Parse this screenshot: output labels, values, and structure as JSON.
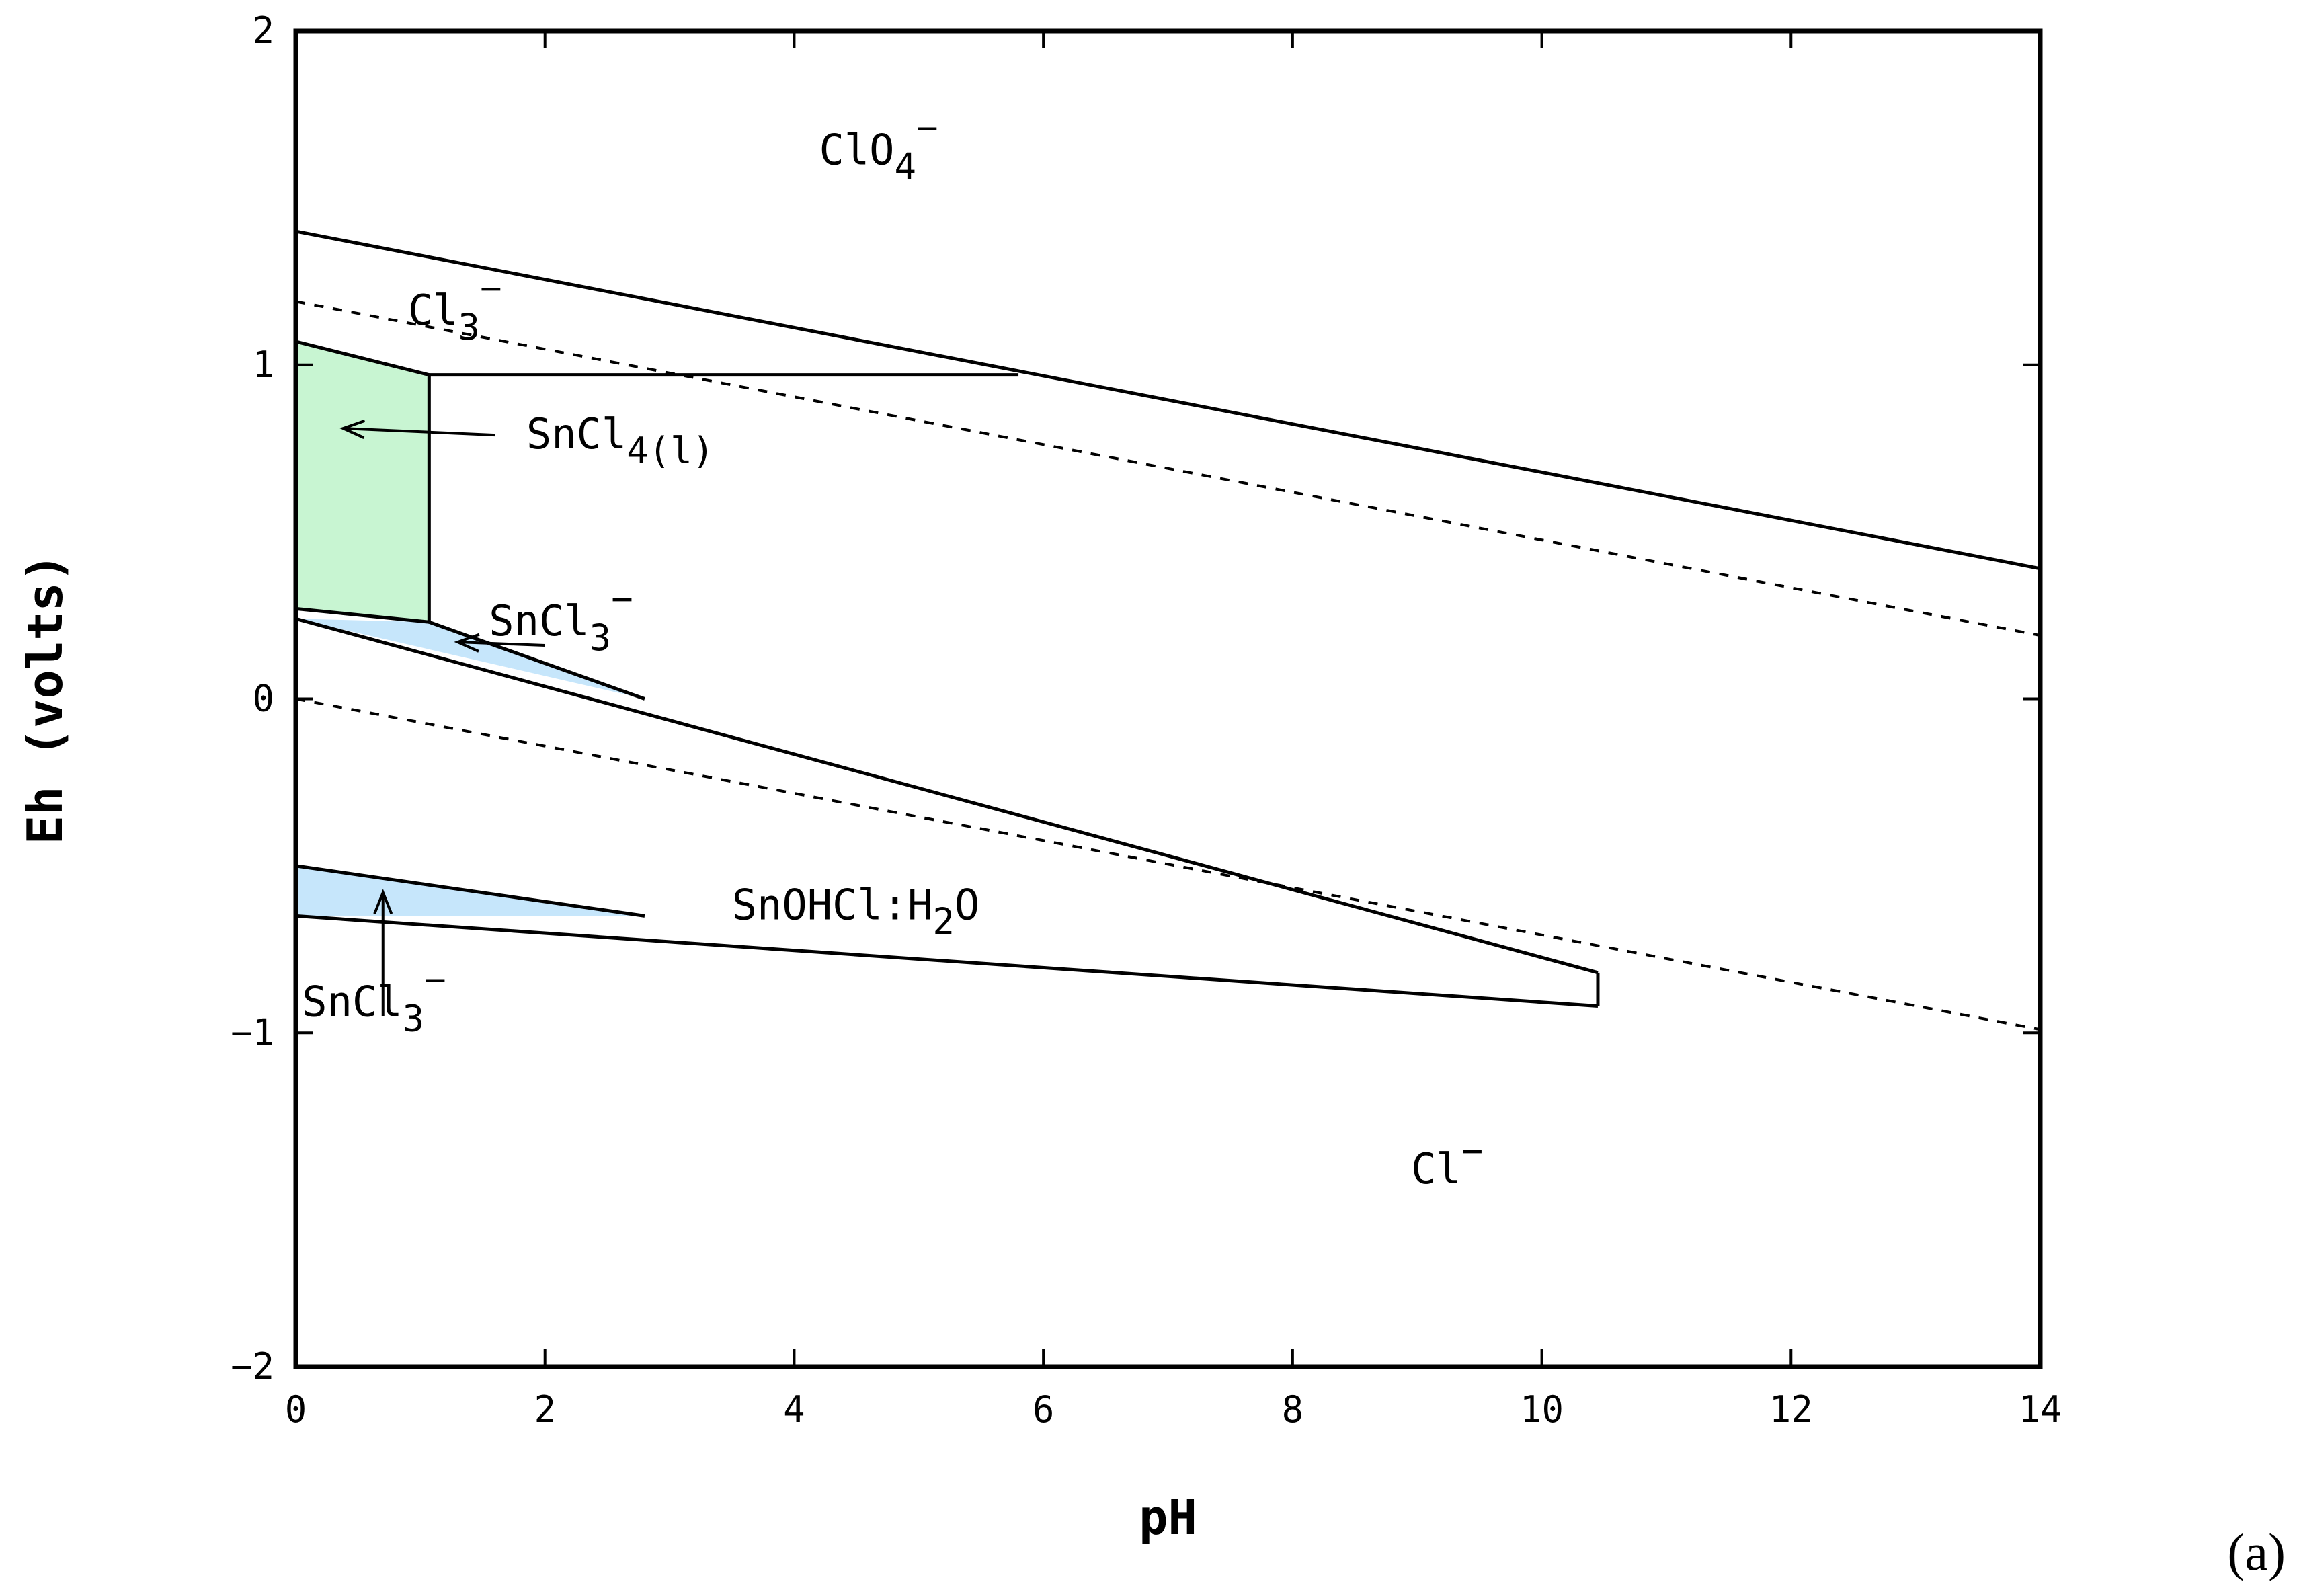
{
  "figure_label": "(a)",
  "colors": {
    "frame": "#000000",
    "snCl4_fill": "#c8f5d2",
    "snCl3_fill": "#c6e6fb",
    "line": "#000000"
  },
  "chart_data": {
    "type": "area",
    "title": "",
    "xlabel": "pH",
    "ylabel": "Eh (volts)",
    "xlim": [
      0,
      14
    ],
    "ylim": [
      -2,
      2
    ],
    "xticks": [
      "0",
      "2",
      "4",
      "6",
      "8",
      "10",
      "12",
      "14"
    ],
    "yticks": [
      "2",
      "1",
      "0",
      "−1",
      "−2"
    ],
    "xtick_values": [
      0,
      2,
      4,
      6,
      8,
      10,
      12,
      14
    ],
    "ytick_values": [
      2,
      1,
      0,
      -1,
      -2
    ],
    "grid": false,
    "regions": [
      {
        "name": "SnCl4(l)",
        "fill": "snCl4_fill",
        "polygon": [
          [
            0,
            1.07
          ],
          [
            1.07,
            0.97
          ],
          [
            1.07,
            0.23
          ],
          [
            0,
            0.27
          ]
        ]
      },
      {
        "name": "SnCl3- (upper)",
        "fill": "snCl3_fill",
        "polygon": [
          [
            0,
            0.24
          ],
          [
            1.07,
            0.23
          ],
          [
            2.8,
            0.0
          ]
        ]
      },
      {
        "name": "SnCl3- (lower)",
        "fill": "snCl3_fill",
        "polygon": [
          [
            0,
            -0.5
          ],
          [
            0,
            -0.65
          ],
          [
            2.8,
            -0.65
          ]
        ]
      }
    ],
    "boundaries": [
      {
        "style": "solid",
        "points": [
          [
            0,
            1.4
          ],
          [
            14,
            0.39
          ]
        ]
      },
      {
        "style": "solid",
        "points": [
          [
            1.07,
            0.97
          ],
          [
            5.8,
            0.97
          ]
        ]
      },
      {
        "style": "solid",
        "points": [
          [
            0,
            1.07
          ],
          [
            1.07,
            0.97
          ]
        ]
      },
      {
        "style": "solid",
        "points": [
          [
            1.07,
            0.97
          ],
          [
            1.07,
            0.23
          ]
        ]
      },
      {
        "style": "solid",
        "points": [
          [
            0,
            0.27
          ],
          [
            1.07,
            0.23
          ]
        ]
      },
      {
        "style": "solid",
        "points": [
          [
            0,
            0.24
          ],
          [
            10.45,
            -0.82
          ]
        ]
      },
      {
        "style": "solid",
        "points": [
          [
            1.07,
            0.23
          ],
          [
            2.8,
            0.0
          ]
        ]
      },
      {
        "style": "solid",
        "points": [
          [
            10.45,
            -0.82
          ],
          [
            10.45,
            -0.92
          ]
        ]
      },
      {
        "style": "solid",
        "points": [
          [
            0,
            -0.5
          ],
          [
            2.8,
            -0.65
          ]
        ]
      },
      {
        "style": "solid",
        "points": [
          [
            0,
            -0.65
          ],
          [
            10.45,
            -0.92
          ]
        ]
      },
      {
        "style": "dashed",
        "points": [
          [
            0,
            1.19
          ],
          [
            14,
            0.19
          ]
        ]
      },
      {
        "style": "dashed",
        "points": [
          [
            0,
            0.0
          ],
          [
            14,
            -0.99
          ]
        ]
      }
    ],
    "annotations": [
      {
        "base": "ClO",
        "sub": "4",
        "sup": "−",
        "x": 4.2,
        "y": 1.6
      },
      {
        "base": "Cl",
        "sub": "3",
        "sup": "−",
        "x": 0.9,
        "y": 1.12
      },
      {
        "base": "SnCl",
        "sub": "4(l)",
        "sup": "",
        "x": 1.85,
        "y": 0.75
      },
      {
        "base": "SnCl",
        "sub": "3",
        "sup": "−",
        "x": 1.55,
        "y": 0.19
      },
      {
        "base": "SnOHCl:H",
        "sub": "2",
        "sup": "",
        "tail": "O",
        "x": 3.5,
        "y": -0.66
      },
      {
        "base": "SnCl",
        "sub": "3",
        "sup": "−",
        "x": 0.05,
        "y": -0.95
      },
      {
        "base": "Cl",
        "sub": "",
        "sup": "−",
        "x": 8.95,
        "y": -1.45
      }
    ],
    "arrows": [
      {
        "from": [
          1.6,
          0.79
        ],
        "to": [
          0.38,
          0.81
        ]
      },
      {
        "from": [
          2.0,
          0.16
        ],
        "to": [
          1.3,
          0.17
        ]
      },
      {
        "from": [
          0.7,
          -0.95
        ],
        "to": [
          0.7,
          -0.58
        ]
      }
    ]
  }
}
